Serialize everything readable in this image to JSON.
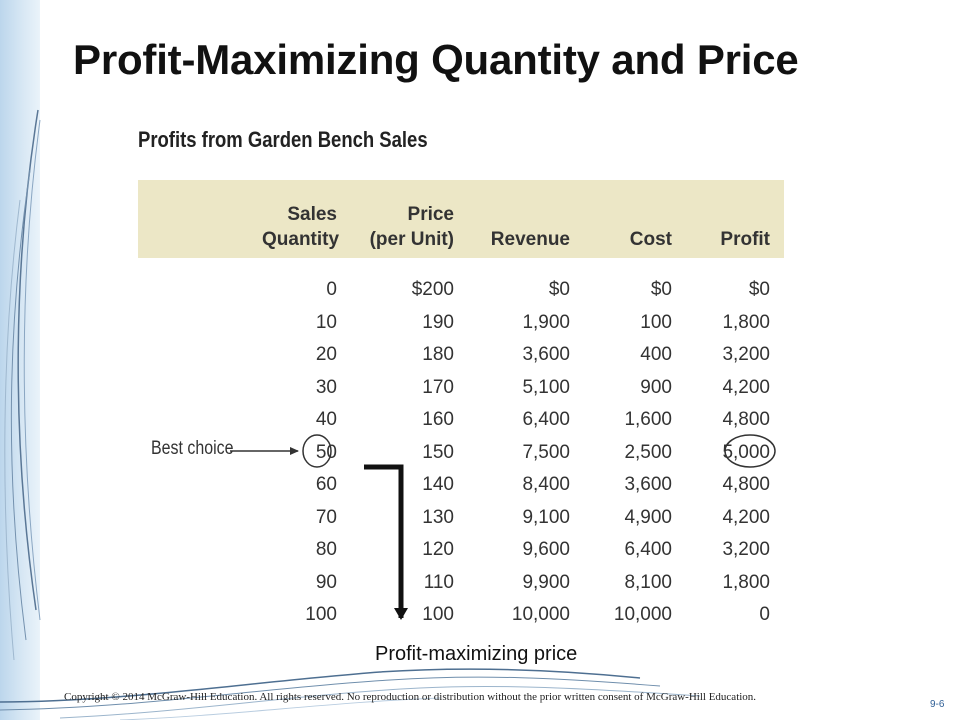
{
  "slide": {
    "title": "Profit-Maximizing Quantity and Price",
    "copyright": "Copyright © 2014 McGraw-Hill Education. All rights reserved. No reproduction or distribution without the prior written consent of McGraw-Hill Education.",
    "slide_number": "9-6"
  },
  "table": {
    "caption": "Profits from Garden Bench Sales",
    "columns": [
      {
        "line1": "Sales",
        "line2": "Quantity"
      },
      {
        "line1": "Price",
        "line2": "(per Unit)"
      },
      {
        "line1": "",
        "line2": "Revenue"
      },
      {
        "line1": "",
        "line2": "Cost"
      },
      {
        "line1": "",
        "line2": "Profit"
      }
    ],
    "rows": [
      [
        "0",
        "$200",
        "$0",
        "$0",
        "$0"
      ],
      [
        "10",
        "190",
        "1,900",
        "100",
        "1,800"
      ],
      [
        "20",
        "180",
        "3,600",
        "400",
        "3,200"
      ],
      [
        "30",
        "170",
        "5,100",
        "900",
        "4,200"
      ],
      [
        "40",
        "160",
        "6,400",
        "1,600",
        "4,800"
      ],
      [
        "50",
        "150",
        "7,500",
        "2,500",
        "5,000"
      ],
      [
        "60",
        "140",
        "8,400",
        "3,600",
        "4,800"
      ],
      [
        "70",
        "130",
        "9,100",
        "4,900",
        "4,200"
      ],
      [
        "80",
        "120",
        "9,600",
        "6,400",
        "3,200"
      ],
      [
        "90",
        "110",
        "9,900",
        "8,100",
        "1,800"
      ],
      [
        "100",
        "100",
        "10,000",
        "10,000",
        "0"
      ]
    ],
    "header_color": "#ece7c6",
    "highlight": {
      "row": 5,
      "columns": [
        0,
        4
      ]
    }
  },
  "annotations": {
    "best_choice": "Best choice",
    "price_note": "Profit-maximizing price"
  },
  "colors": {
    "side_band": "#c9dff1",
    "accent": "#2f5f96"
  }
}
